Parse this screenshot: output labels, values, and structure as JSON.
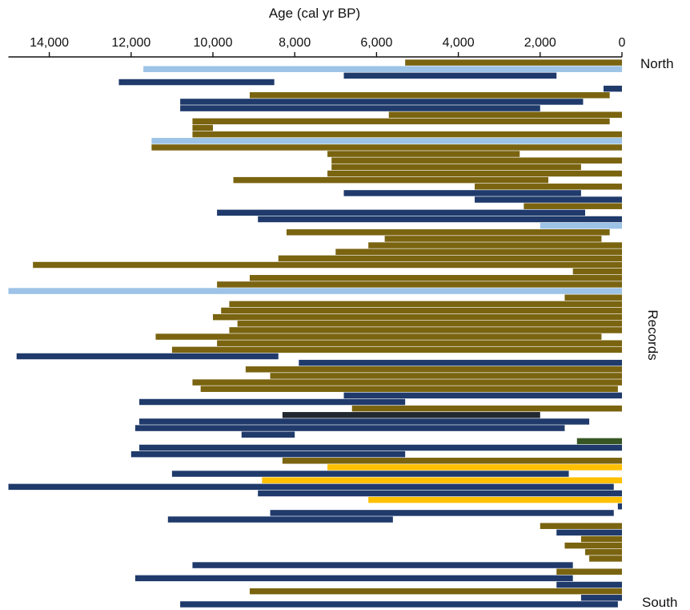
{
  "chart_data": {
    "type": "bar",
    "orientation": "horizontal-range",
    "title": "",
    "xlabel": "Age (cal yr BP)",
    "ylabel": "Records",
    "y_top_label": "North",
    "y_bottom_label": "South",
    "x_axis_position": "top",
    "x_reversed": true,
    "xlim": [
      15000,
      0
    ],
    "xticks": [
      14000,
      12000,
      10000,
      8000,
      6000,
      4000,
      2000,
      0
    ],
    "xtick_labels": [
      "14,000",
      "12,000",
      "10,000",
      "8,000",
      "6,000",
      "4,000",
      "2,000",
      "0"
    ],
    "grid": false,
    "legend": "none",
    "colors": {
      "olive": "#7a6410",
      "navy": "#1f3a6b",
      "lightblue": "#9dc3e6",
      "gold": "#ffc000",
      "green": "#375623",
      "dark": "#222831"
    },
    "records": [
      {
        "start": 5300,
        "end": 0,
        "color": "olive"
      },
      {
        "start": 11700,
        "end": 0,
        "color": "lightblue"
      },
      {
        "start": 6800,
        "end": 1600,
        "color": "navy"
      },
      {
        "start": 12300,
        "end": 8500,
        "color": "navy"
      },
      {
        "start": 450,
        "end": 0,
        "color": "navy"
      },
      {
        "start": 9100,
        "end": 300,
        "color": "olive"
      },
      {
        "start": 10800,
        "end": 950,
        "color": "navy"
      },
      {
        "start": 10800,
        "end": 2000,
        "color": "navy"
      },
      {
        "start": 5700,
        "end": 0,
        "color": "olive"
      },
      {
        "start": 10500,
        "end": 300,
        "color": "olive"
      },
      {
        "start": 10500,
        "end": 10000,
        "color": "olive"
      },
      {
        "start": 10500,
        "end": 0,
        "color": "olive"
      },
      {
        "start": 11500,
        "end": 0,
        "color": "lightblue"
      },
      {
        "start": 11500,
        "end": 0,
        "color": "olive"
      },
      {
        "start": 7200,
        "end": 2500,
        "color": "olive"
      },
      {
        "start": 7100,
        "end": 0,
        "color": "olive"
      },
      {
        "start": 7100,
        "end": 1000,
        "color": "olive"
      },
      {
        "start": 7200,
        "end": 0,
        "color": "olive"
      },
      {
        "start": 9500,
        "end": 1800,
        "color": "olive"
      },
      {
        "start": 3600,
        "end": 0,
        "color": "olive"
      },
      {
        "start": 6800,
        "end": 1000,
        "color": "navy"
      },
      {
        "start": 3600,
        "end": 0,
        "color": "navy"
      },
      {
        "start": 2400,
        "end": 0,
        "color": "olive"
      },
      {
        "start": 9900,
        "end": 900,
        "color": "navy"
      },
      {
        "start": 8900,
        "end": 0,
        "color": "navy"
      },
      {
        "start": 2000,
        "end": 0,
        "color": "lightblue"
      },
      {
        "start": 8200,
        "end": 300,
        "color": "olive"
      },
      {
        "start": 5800,
        "end": 500,
        "color": "olive"
      },
      {
        "start": 6200,
        "end": 0,
        "color": "olive"
      },
      {
        "start": 7000,
        "end": 0,
        "color": "olive"
      },
      {
        "start": 8400,
        "end": 0,
        "color": "olive"
      },
      {
        "start": 14400,
        "end": 0,
        "color": "olive"
      },
      {
        "start": 1200,
        "end": 0,
        "color": "olive"
      },
      {
        "start": 9100,
        "end": 0,
        "color": "olive"
      },
      {
        "start": 9900,
        "end": 0,
        "color": "olive"
      },
      {
        "start": 15000,
        "end": 0,
        "color": "lightblue"
      },
      {
        "start": 1400,
        "end": 0,
        "color": "olive"
      },
      {
        "start": 9600,
        "end": 0,
        "color": "olive"
      },
      {
        "start": 9800,
        "end": 0,
        "color": "olive"
      },
      {
        "start": 10000,
        "end": 0,
        "color": "olive"
      },
      {
        "start": 9400,
        "end": 0,
        "color": "olive"
      },
      {
        "start": 9600,
        "end": 0,
        "color": "olive"
      },
      {
        "start": 11400,
        "end": 500,
        "color": "olive"
      },
      {
        "start": 9900,
        "end": 0,
        "color": "olive"
      },
      {
        "start": 11000,
        "end": 0,
        "color": "olive"
      },
      {
        "start": 14800,
        "end": 8400,
        "color": "navy"
      },
      {
        "start": 7900,
        "end": 0,
        "color": "navy"
      },
      {
        "start": 9200,
        "end": 0,
        "color": "olive"
      },
      {
        "start": 8600,
        "end": 0,
        "color": "olive"
      },
      {
        "start": 10500,
        "end": 0,
        "color": "olive"
      },
      {
        "start": 10300,
        "end": 100,
        "color": "olive"
      },
      {
        "start": 6800,
        "end": 0,
        "color": "navy"
      },
      {
        "start": 11800,
        "end": 5300,
        "color": "navy"
      },
      {
        "start": 6600,
        "end": 0,
        "color": "olive"
      },
      {
        "start": 8300,
        "end": 2000,
        "color": "dark"
      },
      {
        "start": 11800,
        "end": 800,
        "color": "navy"
      },
      {
        "start": 11900,
        "end": 1400,
        "color": "navy"
      },
      {
        "start": 9300,
        "end": 8000,
        "color": "navy"
      },
      {
        "start": 1100,
        "end": 0,
        "color": "green"
      },
      {
        "start": 11800,
        "end": 0,
        "color": "navy"
      },
      {
        "start": 12000,
        "end": 5300,
        "color": "navy"
      },
      {
        "start": 8300,
        "end": 0,
        "color": "olive"
      },
      {
        "start": 7200,
        "end": 0,
        "color": "gold"
      },
      {
        "start": 11000,
        "end": 1300,
        "color": "navy"
      },
      {
        "start": 8800,
        "end": 0,
        "color": "gold"
      },
      {
        "start": 15000,
        "end": 200,
        "color": "navy"
      },
      {
        "start": 8900,
        "end": 0,
        "color": "navy"
      },
      {
        "start": 6200,
        "end": 0,
        "color": "gold"
      },
      {
        "start": 100,
        "end": 0,
        "color": "navy"
      },
      {
        "start": 8600,
        "end": 200,
        "color": "navy"
      },
      {
        "start": 11100,
        "end": 5600,
        "color": "navy"
      },
      {
        "start": 2000,
        "end": 0,
        "color": "olive"
      },
      {
        "start": 1600,
        "end": 0,
        "color": "navy"
      },
      {
        "start": 1000,
        "end": 0,
        "color": "olive"
      },
      {
        "start": 1400,
        "end": 0,
        "color": "olive"
      },
      {
        "start": 900,
        "end": 0,
        "color": "olive"
      },
      {
        "start": 800,
        "end": 0,
        "color": "olive"
      },
      {
        "start": 10500,
        "end": 1200,
        "color": "navy"
      },
      {
        "start": 1600,
        "end": 0,
        "color": "olive"
      },
      {
        "start": 11900,
        "end": 1200,
        "color": "navy"
      },
      {
        "start": 1600,
        "end": 0,
        "color": "navy"
      },
      {
        "start": 9100,
        "end": 0,
        "color": "olive"
      },
      {
        "start": 1000,
        "end": 0,
        "color": "navy"
      },
      {
        "start": 10800,
        "end": 100,
        "color": "navy"
      }
    ]
  }
}
